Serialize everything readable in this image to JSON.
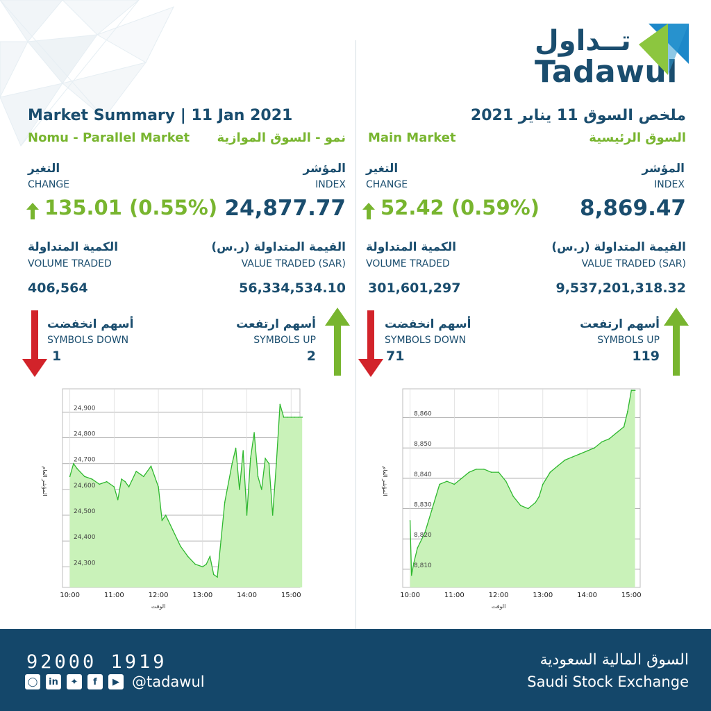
{
  "logo": {
    "arabic": "تــداول",
    "english": "Tadawul"
  },
  "nomu": {
    "title": "Market Summary | 11 Jan 2021",
    "market_en": "Nomu - Parallel Market",
    "market_ar": "نمو - السوق الموازية",
    "change_ar": "التغير",
    "change_en": "CHANGE",
    "change_value": "135.01 (0.55%)",
    "index_ar": "المؤشر",
    "index_en": "INDEX",
    "index_value": "24,877.77",
    "volume_ar": "الكمية المتداولة",
    "volume_en": "VOLUME TRADED",
    "volume_value": "406,564",
    "value_ar": "القيمة المتداولة (ر.س)",
    "value_en": "VALUE TRADED (SAR)",
    "value_value": "56,334,534.10",
    "down_ar": "أسهم انخفضت",
    "down_en": "SYMBOLS DOWN",
    "down_value": "1",
    "up_ar": "أسهم ارتفعت",
    "up_en": "SYMBOLS UP",
    "up_value": "2"
  },
  "main": {
    "title": "ملخص السوق 11 يناير 2021",
    "market_en": "Main Market",
    "market_ar": "السوق الرئيسية",
    "change_ar": "التغير",
    "change_en": "CHANGE",
    "change_value": "52.42 (0.59%)",
    "index_ar": "المؤشر",
    "index_en": "INDEX",
    "index_value": "8,869.47",
    "volume_ar": "الكمية المتداولة",
    "volume_en": "VOLUME TRADED",
    "volume_value": "301,601,297",
    "value_ar": "القيمة المتداولة (ر.س)",
    "value_en": "VALUE TRADED (SAR)",
    "value_value": "9,537,201,318.32",
    "down_ar": "أسهم انخفضت",
    "down_en": "SYMBOLS DOWN",
    "down_value": "71",
    "up_ar": "أسهم ارتفعت",
    "up_en": "SYMBOLS UP",
    "up_value": "119"
  },
  "colors": {
    "green": "#78b52f",
    "red": "#d2232a",
    "navy": "#1a4d6e",
    "line": "#2fb82f",
    "fill": "#c9f2b9"
  },
  "chart_data": [
    {
      "type": "area",
      "xlabel": "الوقت",
      "ylabel": "المؤشر العام",
      "x_ticks": [
        "10:00",
        "11:00",
        "12:00",
        "13:00",
        "14:00",
        "15:00"
      ],
      "y_ticks": [
        "24,300",
        "24,400",
        "24,500",
        "24,600",
        "24,700",
        "24,800",
        "24,900"
      ],
      "ylim": [
        24220,
        24990
      ],
      "x": [
        "10:00",
        "10:05",
        "10:10",
        "10:20",
        "10:30",
        "10:40",
        "10:50",
        "11:00",
        "11:05",
        "11:10",
        "11:15",
        "11:20",
        "11:30",
        "11:40",
        "11:50",
        "12:00",
        "12:05",
        "12:10",
        "12:20",
        "12:30",
        "12:40",
        "12:50",
        "13:00",
        "13:05",
        "13:10",
        "13:15",
        "13:20",
        "13:30",
        "13:40",
        "13:45",
        "13:50",
        "13:55",
        "14:00",
        "14:05",
        "14:10",
        "14:15",
        "14:20",
        "14:25",
        "14:30",
        "14:35",
        "14:40",
        "14:45",
        "14:50",
        "14:55",
        "15:00",
        "15:05",
        "15:10",
        "15:15"
      ],
      "values": [
        24650,
        24700,
        24680,
        24650,
        24640,
        24620,
        24630,
        24610,
        24560,
        24640,
        24630,
        24610,
        24670,
        24650,
        24690,
        24610,
        24480,
        24500,
        24440,
        24380,
        24340,
        24310,
        24300,
        24310,
        24340,
        24270,
        24260,
        24550,
        24700,
        24760,
        24600,
        24750,
        24500,
        24720,
        24820,
        24650,
        24600,
        24720,
        24700,
        24500,
        24700,
        24930,
        24880,
        24880,
        24880,
        24880,
        24880,
        24880
      ]
    },
    {
      "type": "area",
      "xlabel": "الوقت",
      "ylabel": "المؤشر العام",
      "x_ticks": [
        "10:00",
        "11:00",
        "12:00",
        "13:00",
        "14:00",
        "15:00"
      ],
      "y_ticks": [
        "8,810",
        "8,820",
        "8,830",
        "8,840",
        "8,850",
        "8,860"
      ],
      "ylim": [
        8804,
        8869.5
      ],
      "x": [
        "10:00",
        "10:02",
        "10:05",
        "10:10",
        "10:20",
        "10:30",
        "10:40",
        "10:50",
        "11:00",
        "11:10",
        "11:20",
        "11:30",
        "11:40",
        "11:50",
        "12:00",
        "12:10",
        "12:20",
        "12:30",
        "12:40",
        "12:50",
        "12:55",
        "13:00",
        "13:10",
        "13:20",
        "13:30",
        "13:40",
        "13:50",
        "14:00",
        "14:10",
        "14:20",
        "14:30",
        "14:40",
        "14:50",
        "14:55",
        "15:00",
        "15:05"
      ],
      "values": [
        8826,
        8808,
        8812,
        8817,
        8822,
        8830,
        8838,
        8839,
        8838,
        8840,
        8842,
        8843,
        8843,
        8842,
        8842,
        8839,
        8834,
        8831,
        8830,
        8832,
        8834,
        8838,
        8842,
        8844,
        8846,
        8847,
        8848,
        8849,
        8850,
        8852,
        8853,
        8855,
        8857,
        8862,
        8869,
        8869
      ]
    }
  ],
  "footer": {
    "phone": "92000 1919",
    "handle": "@tadawul",
    "social_icons": [
      "instagram-icon",
      "linkedin-icon",
      "twitter-icon",
      "facebook-icon",
      "youtube-icon"
    ],
    "exchange_ar": "السوق المالية السعودية",
    "exchange_en": "Saudi Stock Exchange"
  }
}
